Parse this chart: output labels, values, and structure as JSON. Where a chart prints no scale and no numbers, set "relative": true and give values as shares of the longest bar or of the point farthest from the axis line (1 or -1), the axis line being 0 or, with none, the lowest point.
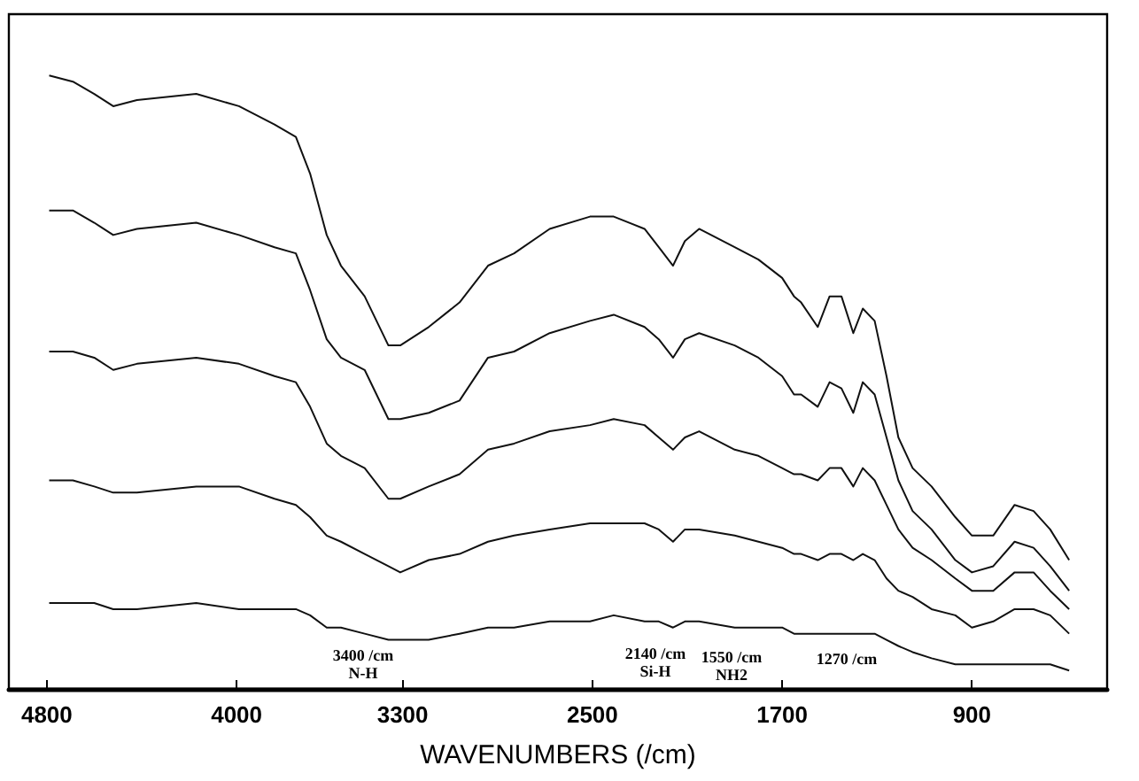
{
  "chart_data": {
    "type": "line",
    "relative": true,
    "xlabel": "WAVENUMBERS (/cm)",
    "x": [
      4790,
      4690,
      4600,
      4520,
      4420,
      4170,
      3990,
      3840,
      3750,
      3690,
      3620,
      3560,
      3460,
      3360,
      3310,
      3190,
      3060,
      2940,
      2830,
      2680,
      2510,
      2410,
      2280,
      2220,
      2160,
      2110,
      2050,
      1900,
      1800,
      1700,
      1650,
      1620,
      1550,
      1500,
      1450,
      1400,
      1360,
      1310,
      1260,
      1210,
      1150,
      1070,
      970,
      900,
      810,
      720,
      640,
      570,
      490
    ],
    "xlim": [
      4960,
      330
    ],
    "xticks": [
      4800,
      4000,
      3300,
      2500,
      1700,
      900
    ],
    "series": [
      {
        "color": "#111111",
        "values": [
          1.0,
          0.99,
          0.97,
          0.95,
          0.96,
          0.97,
          0.95,
          0.92,
          0.9,
          0.84,
          0.74,
          0.69,
          0.64,
          0.56,
          0.56,
          0.59,
          0.63,
          0.69,
          0.71,
          0.75,
          0.77,
          0.77,
          0.75,
          0.72,
          0.69,
          0.73,
          0.75,
          0.72,
          0.7,
          0.67,
          0.64,
          0.63,
          0.59,
          0.64,
          0.64,
          0.58,
          0.62,
          0.6,
          0.51,
          0.41,
          0.36,
          0.33,
          0.28,
          0.25,
          0.25,
          0.3,
          0.29,
          0.26,
          0.21
        ]
      },
      {
        "color": "#111111",
        "values": [
          0.78,
          0.78,
          0.76,
          0.74,
          0.75,
          0.76,
          0.74,
          0.72,
          0.71,
          0.65,
          0.57,
          0.54,
          0.52,
          0.44,
          0.44,
          0.45,
          0.47,
          0.54,
          0.55,
          0.58,
          0.6,
          0.61,
          0.59,
          0.57,
          0.54,
          0.57,
          0.58,
          0.56,
          0.54,
          0.51,
          0.48,
          0.48,
          0.46,
          0.5,
          0.49,
          0.45,
          0.5,
          0.48,
          0.41,
          0.34,
          0.29,
          0.26,
          0.21,
          0.19,
          0.2,
          0.24,
          0.23,
          0.2,
          0.16
        ]
      },
      {
        "color": "#111111",
        "values": [
          0.55,
          0.55,
          0.54,
          0.52,
          0.53,
          0.54,
          0.53,
          0.51,
          0.5,
          0.46,
          0.4,
          0.38,
          0.36,
          0.31,
          0.31,
          0.33,
          0.35,
          0.39,
          0.4,
          0.42,
          0.43,
          0.44,
          0.43,
          0.41,
          0.39,
          0.41,
          0.42,
          0.39,
          0.38,
          0.36,
          0.35,
          0.35,
          0.34,
          0.36,
          0.36,
          0.33,
          0.36,
          0.34,
          0.3,
          0.26,
          0.23,
          0.21,
          0.18,
          0.16,
          0.16,
          0.19,
          0.19,
          0.16,
          0.13
        ]
      },
      {
        "color": "#111111",
        "values": [
          0.34,
          0.34,
          0.33,
          0.32,
          0.32,
          0.33,
          0.33,
          0.31,
          0.3,
          0.28,
          0.25,
          0.24,
          0.22,
          0.2,
          0.19,
          0.21,
          0.22,
          0.24,
          0.25,
          0.26,
          0.27,
          0.27,
          0.27,
          0.26,
          0.24,
          0.26,
          0.26,
          0.25,
          0.24,
          0.23,
          0.22,
          0.22,
          0.21,
          0.22,
          0.22,
          0.21,
          0.22,
          0.21,
          0.18,
          0.16,
          0.15,
          0.13,
          0.12,
          0.1,
          0.11,
          0.13,
          0.13,
          0.12,
          0.09
        ]
      },
      {
        "color": "#111111",
        "values": [
          0.14,
          0.14,
          0.14,
          0.13,
          0.13,
          0.14,
          0.13,
          0.13,
          0.13,
          0.12,
          0.1,
          0.1,
          0.09,
          0.08,
          0.08,
          0.08,
          0.09,
          0.1,
          0.1,
          0.11,
          0.11,
          0.12,
          0.11,
          0.11,
          0.1,
          0.11,
          0.11,
          0.1,
          0.1,
          0.1,
          0.09,
          0.09,
          0.09,
          0.09,
          0.09,
          0.09,
          0.09,
          0.09,
          0.08,
          0.07,
          0.06,
          0.05,
          0.04,
          0.04,
          0.04,
          0.04,
          0.04,
          0.04,
          0.03
        ]
      }
    ],
    "annotations": [
      "3400 /cm\nN-H",
      "2140 /cm\nSi-H",
      "1550 /cm\nNH2",
      "1270 /cm"
    ]
  }
}
